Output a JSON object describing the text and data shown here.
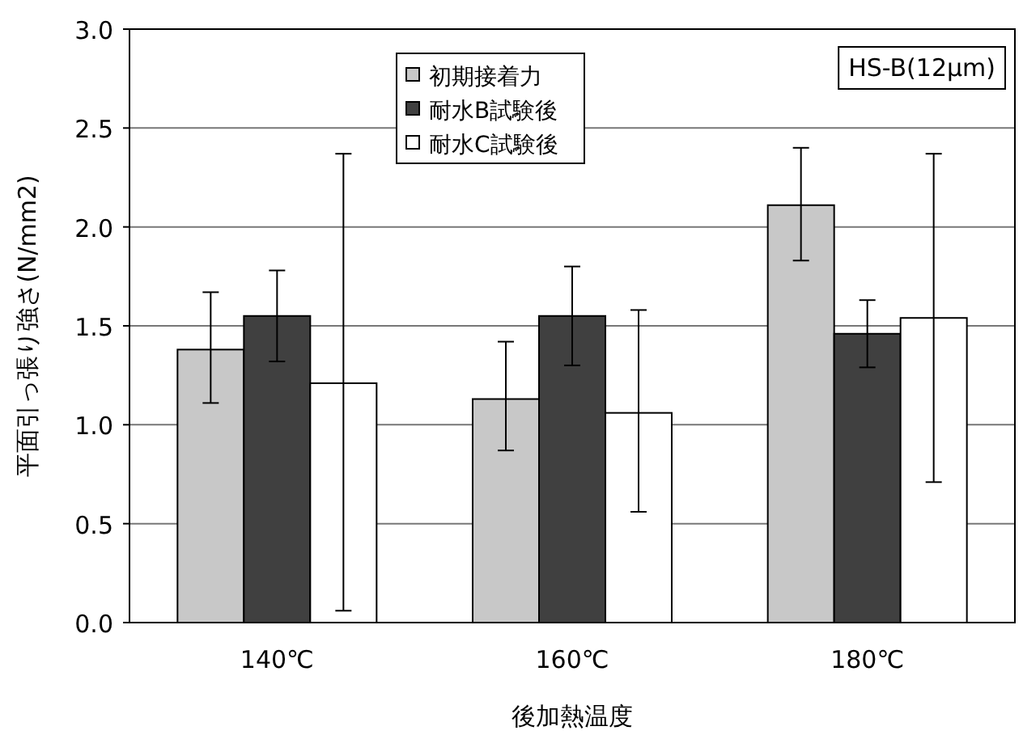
{
  "chart_data": {
    "type": "bar",
    "xlabel": "後加熱温度",
    "ylabel": "平面引っ張り強さ(N/mm2)",
    "annotations": [
      "HS-B(12μm)"
    ],
    "categories": [
      "140℃",
      "160℃",
      "180℃"
    ],
    "series": [
      {
        "name": "初期接着力",
        "color": "#c8c8c8",
        "values": [
          1.38,
          1.13,
          2.11
        ],
        "errors": [
          [
            1.11,
            1.67
          ],
          [
            0.87,
            1.42
          ],
          [
            1.83,
            2.4
          ]
        ]
      },
      {
        "name": "耐水B試験後",
        "color": "#404040",
        "values": [
          1.55,
          1.55,
          1.46
        ],
        "errors": [
          0.23,
          0.25,
          0.17
        ]
      },
      {
        "name": "耐水C試験後",
        "color": "#ffffff",
        "values": [
          1.21,
          1.06,
          1.54
        ],
        "errors": [
          [
            0.06,
            2.37
          ],
          [
            0.56,
            1.58
          ],
          [
            0.71,
            2.37
          ]
        ]
      }
    ],
    "ylim": [
      0,
      3
    ],
    "yticks": [
      {
        "value": 0,
        "label": "0.0"
      },
      {
        "value": 0.5,
        "label": "0.5"
      },
      {
        "value": 1,
        "label": "1.0"
      },
      {
        "value": 1.5,
        "label": "1.5"
      },
      {
        "value": 2,
        "label": "2.0"
      },
      {
        "value": 2.5,
        "label": "2.5"
      },
      {
        "value": 3,
        "label": "3.0"
      }
    ],
    "grid": "y",
    "legend": "top"
  }
}
